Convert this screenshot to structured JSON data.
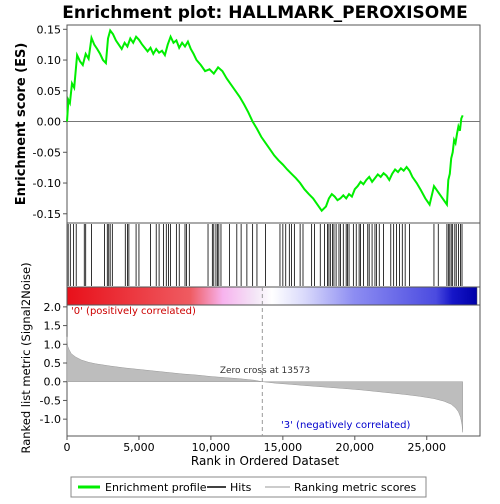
{
  "chart_data": {
    "type": "line",
    "title": "Enrichment plot: HALLMARK_PEROXISOME",
    "es_panel": {
      "ylabel": "Enrichment score (ES)",
      "ylim": [
        -0.165,
        0.157
      ],
      "yticks": [
        -0.15,
        -0.1,
        -0.05,
        0.0,
        0.05,
        0.1,
        0.15
      ],
      "ytick_labels": [
        "-0.15",
        "-0.10",
        "-0.05",
        "0.00",
        "0.05",
        "0.10",
        "0.15"
      ],
      "series": [
        {
          "name": "Enrichment profile",
          "color": "#00ee00",
          "x": [
            0,
            100,
            200,
            350,
            500,
            700,
            900,
            1100,
            1300,
            1500,
            1700,
            1900,
            2100,
            2300,
            2500,
            2700,
            2850,
            3000,
            3200,
            3400,
            3600,
            3800,
            4000,
            4200,
            4400,
            4600,
            4800,
            5000,
            5200,
            5400,
            5600,
            5800,
            6000,
            6200,
            6400,
            6600,
            6800,
            7000,
            7200,
            7400,
            7600,
            7800,
            8000,
            8200,
            8400,
            8600,
            8800,
            9000,
            9300,
            9600,
            9900,
            10200,
            10500,
            10800,
            11100,
            11400,
            11700,
            12000,
            12300,
            12600,
            12900,
            13200,
            13500,
            13800,
            14100,
            14400,
            14700,
            15000,
            15300,
            15600,
            15900,
            16200,
            16500,
            16800,
            17100,
            17400,
            17700,
            18000,
            18200,
            18400,
            18600,
            18800,
            19000,
            19200,
            19400,
            19600,
            19800,
            20000,
            20200,
            20400,
            20600,
            20800,
            21000,
            21200,
            21400,
            21600,
            21800,
            22000,
            22200,
            22400,
            22600,
            22800,
            23000,
            23200,
            23400,
            23600,
            23800,
            24000,
            24300,
            24600,
            24900,
            25200,
            25500,
            25800,
            26100,
            26400,
            26500,
            26600,
            26700,
            26800,
            26900,
            27000,
            27100,
            27200,
            27300,
            27400,
            27500
          ],
          "y": [
            0.0,
            0.035,
            0.03,
            0.062,
            0.055,
            0.108,
            0.098,
            0.092,
            0.11,
            0.102,
            0.136,
            0.125,
            0.118,
            0.11,
            0.1,
            0.095,
            0.135,
            0.148,
            0.142,
            0.132,
            0.125,
            0.118,
            0.128,
            0.122,
            0.135,
            0.128,
            0.138,
            0.133,
            0.126,
            0.12,
            0.114,
            0.12,
            0.11,
            0.118,
            0.112,
            0.115,
            0.108,
            0.125,
            0.138,
            0.128,
            0.132,
            0.12,
            0.128,
            0.122,
            0.13,
            0.118,
            0.11,
            0.1,
            0.092,
            0.082,
            0.085,
            0.078,
            0.088,
            0.082,
            0.07,
            0.06,
            0.05,
            0.04,
            0.028,
            0.015,
            0.0,
            -0.012,
            -0.025,
            -0.035,
            -0.045,
            -0.055,
            -0.063,
            -0.07,
            -0.078,
            -0.085,
            -0.092,
            -0.1,
            -0.11,
            -0.118,
            -0.125,
            -0.135,
            -0.145,
            -0.138,
            -0.125,
            -0.118,
            -0.122,
            -0.128,
            -0.125,
            -0.12,
            -0.125,
            -0.118,
            -0.122,
            -0.11,
            -0.105,
            -0.098,
            -0.102,
            -0.095,
            -0.09,
            -0.098,
            -0.092,
            -0.086,
            -0.09,
            -0.084,
            -0.088,
            -0.095,
            -0.085,
            -0.078,
            -0.082,
            -0.076,
            -0.08,
            -0.074,
            -0.08,
            -0.09,
            -0.1,
            -0.112,
            -0.125,
            -0.135,
            -0.105,
            -0.115,
            -0.125,
            -0.135,
            -0.095,
            -0.085,
            -0.06,
            -0.05,
            -0.03,
            -0.035,
            -0.02,
            -0.008,
            -0.015,
            0.005,
            0.01
          ]
        }
      ],
      "zero_line": 0.0
    },
    "hits_panel": {
      "legend_label": "Hits",
      "positions": [
        80,
        230,
        460,
        640,
        1200,
        1300,
        1700,
        2600,
        2800,
        2900,
        3000,
        3150,
        4050,
        4200,
        4300,
        4800,
        5000,
        5800,
        6200,
        6400,
        6700,
        6900,
        7050,
        7200,
        7600,
        7800,
        8200,
        8300,
        8500,
        9800,
        10100,
        10200,
        10350,
        10450,
        10550,
        10700,
        11300,
        11800,
        12100,
        12500,
        12900,
        13200,
        13800,
        14800,
        15000,
        15200,
        15450,
        15600,
        15800,
        16200,
        16400,
        17000,
        17200,
        17600,
        17900,
        18100,
        18200,
        18300,
        18450,
        18550,
        18700,
        18900,
        19000,
        19200,
        19400,
        19500,
        19600,
        19900,
        20100,
        20300,
        20400,
        20600,
        20900,
        21000,
        21200,
        21400,
        21500,
        21700,
        22000,
        22500,
        22700,
        22900,
        23100,
        23300,
        23500,
        23800,
        25500,
        25800,
        26400,
        26500,
        26600,
        26700,
        26800,
        26950,
        27050,
        27200,
        27350,
        27450
      ]
    },
    "metric_panel": {
      "ylabel": "Ranked list metric (Signal2Noise)",
      "ylim": [
        -1.45,
        2.05
      ],
      "yticks": [
        -1.0,
        -0.5,
        0.0,
        0.5,
        1.0,
        1.5,
        2.0
      ],
      "ytick_labels": [
        "-1.0",
        "-0.5",
        "0.0",
        "0.5",
        "1.0",
        "1.5",
        "2.0"
      ],
      "x": [
        0,
        50,
        150,
        300,
        600,
        1000,
        1500,
        2000,
        3000,
        4000,
        5000,
        6000,
        7000,
        8000,
        9000,
        10000,
        11000,
        12000,
        13000,
        13573,
        14500,
        15500,
        16500,
        17500,
        18500,
        19500,
        20500,
        21500,
        22500,
        23500,
        24500,
        25500,
        26200,
        26700,
        27000,
        27200,
        27350,
        27450,
        27500
      ],
      "y": [
        1.2,
        0.95,
        0.85,
        0.75,
        0.66,
        0.58,
        0.52,
        0.48,
        0.42,
        0.37,
        0.33,
        0.29,
        0.25,
        0.21,
        0.18,
        0.14,
        0.11,
        0.08,
        0.04,
        0.0,
        -0.04,
        -0.07,
        -0.1,
        -0.13,
        -0.16,
        -0.19,
        -0.22,
        -0.26,
        -0.3,
        -0.34,
        -0.39,
        -0.45,
        -0.52,
        -0.6,
        -0.7,
        -0.8,
        -0.95,
        -1.15,
        -1.35
      ],
      "zero_cross_label": "Zero cross at 13573",
      "zero_cross": 13573,
      "pos_label": "'0' (positively correlated)",
      "neg_label": "'3' (negatively correlated)"
    },
    "xaxis": {
      "label": "Rank in Ordered Dataset",
      "xlim": [
        0,
        28700
      ],
      "ticks": [
        0,
        5000,
        10000,
        15000,
        20000,
        25000
      ],
      "tick_labels": [
        "0",
        "5,000",
        "10,000",
        "15,000",
        "20,000",
        "25,000"
      ]
    },
    "legend": {
      "items": [
        "Enrichment profile",
        "Hits",
        "Ranking metric scores"
      ],
      "placement": "bottom"
    },
    "gradient_colors": {
      "pos": "#ff0000",
      "neutral": "#ffffff",
      "neg": "#0000ff"
    }
  }
}
